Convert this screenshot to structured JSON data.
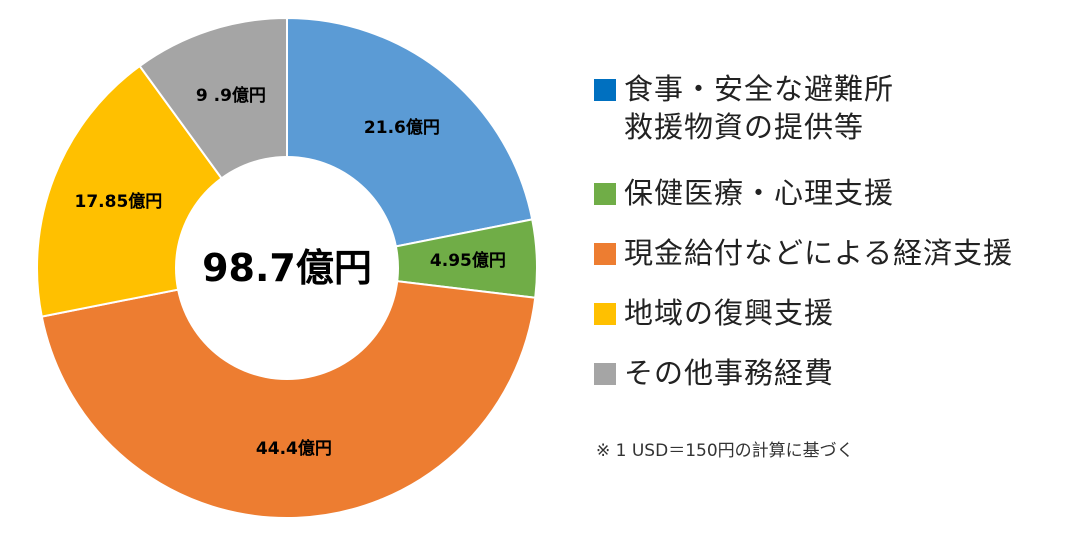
{
  "chart_data": {
    "type": "pie",
    "subtype": "donut",
    "center_label": "98.7億円",
    "total": 98.7,
    "unit": "億円",
    "slices": [
      {
        "label": "食事・安全な避難所\n救援物資の提供等",
        "value": 21.6,
        "data_label": "21.6億円",
        "color": "#5b9bd5",
        "legend_color": "#0070c0"
      },
      {
        "label": "保健医療・心理支援",
        "value": 4.95,
        "data_label": "4.95億円",
        "color": "#70ad47",
        "legend_color": "#70ad47"
      },
      {
        "label": "現金給付などによる経済支援",
        "value": 44.4,
        "data_label": "44.4億円",
        "color": "#ed7d31",
        "legend_color": "#ed7d31"
      },
      {
        "label": "地域の復興支援",
        "value": 17.85,
        "data_label": "17.85億円",
        "color": "#ffc000",
        "legend_color": "#ffc000"
      },
      {
        "label": "その他事務経費",
        "value": 9.9,
        "data_label": "9 .9億円",
        "color": "#a5a5a5",
        "legend_color": "#a5a5a5"
      }
    ],
    "legend_position": "right"
  },
  "footnote": "※ 1 USD＝150円の計算に基づく"
}
